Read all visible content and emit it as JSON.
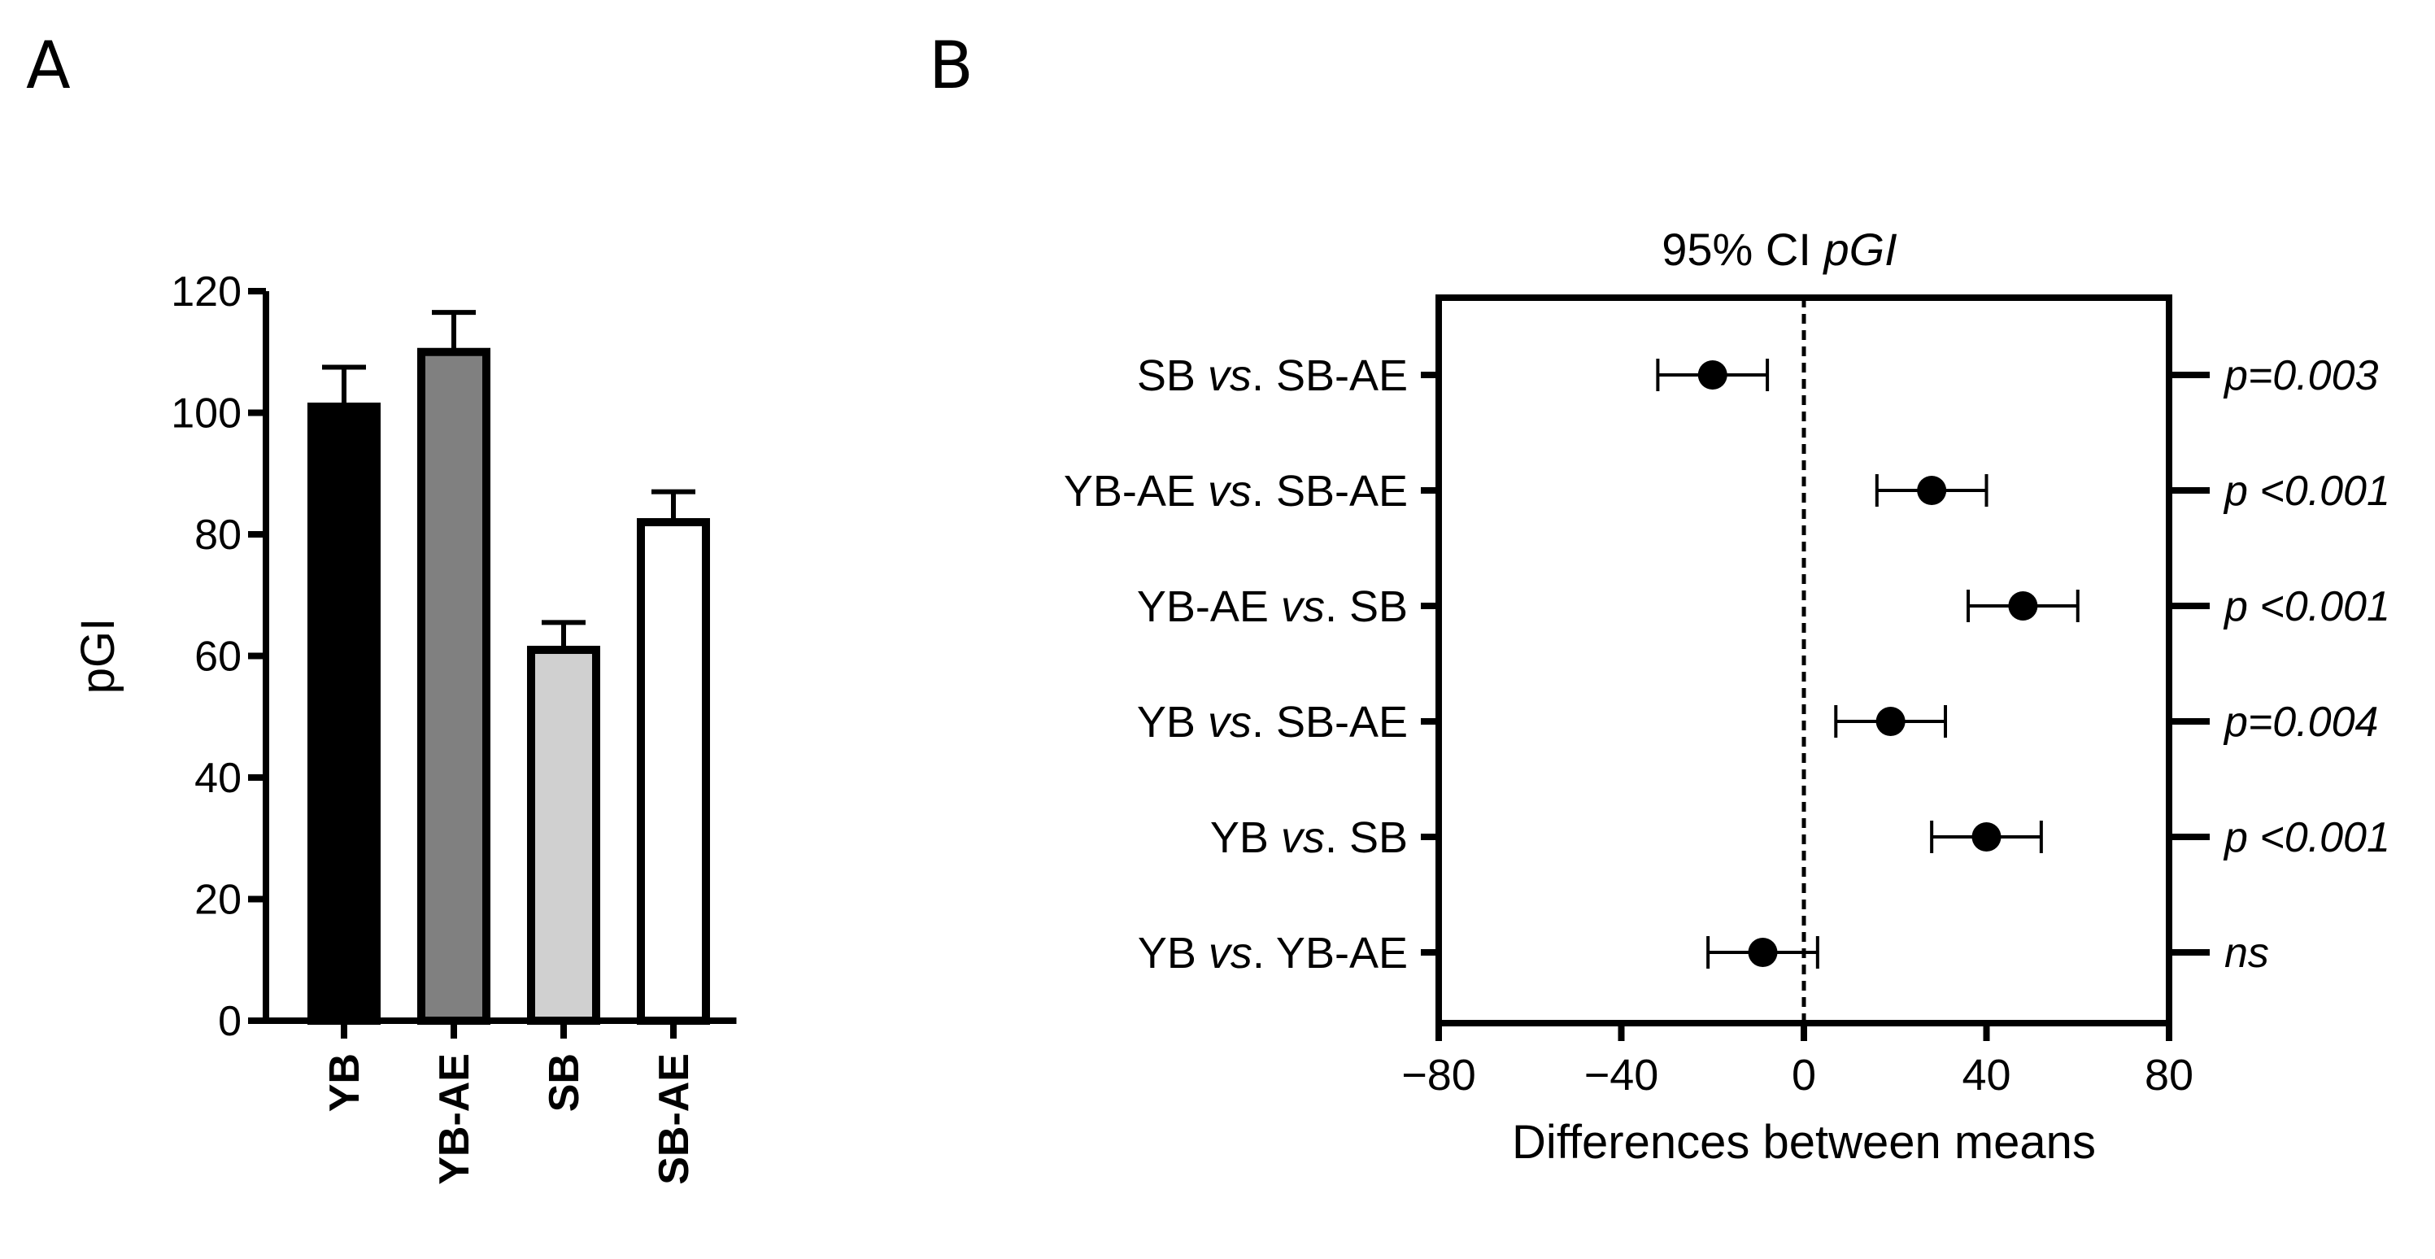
{
  "panels": {
    "a_label": "A",
    "b_label": "B"
  },
  "colors": {
    "ink": "#000000",
    "yb": "#000000",
    "yb_ae": "#808080",
    "sb": "#d0d0d0",
    "sb_ae": "#ffffff"
  },
  "chart_data": [
    {
      "type": "bar",
      "title": "",
      "ylabel": "pGI",
      "xlabel": "",
      "ylim": [
        0,
        120
      ],
      "yticks": [
        0,
        20,
        40,
        60,
        80,
        100,
        120
      ],
      "categories": [
        "YB",
        "YB-AE",
        "SB",
        "SB-AE"
      ],
      "values": [
        101,
        110,
        61,
        82
      ],
      "errors": [
        6.5,
        6.5,
        4.5,
        5
      ],
      "bar_colors": [
        "#000000",
        "#808080",
        "#d0d0d0",
        "#ffffff"
      ]
    },
    {
      "type": "scatter",
      "title_plain": "95% CI ",
      "title_italic": "pGI",
      "xlabel": "Differences between means",
      "xlim": [
        -80,
        80
      ],
      "xticks": [
        -80,
        -40,
        0,
        40,
        80
      ],
      "xtick_labels": [
        "−80",
        "−40",
        "0",
        "40",
        "80"
      ],
      "reference_line": 0,
      "comparisons": [
        {
          "left": "SB ",
          "mid": "vs",
          "right": ". SB-AE",
          "mean": -20,
          "lo": -32,
          "hi": -8,
          "p": "p=0.003"
        },
        {
          "left": "YB-AE ",
          "mid": "vs",
          "right": ". SB-AE",
          "mean": 28,
          "lo": 16,
          "hi": 40,
          "p": "p <0.001"
        },
        {
          "left": "YB-AE ",
          "mid": "vs",
          "right": ". SB",
          "mean": 48,
          "lo": 36,
          "hi": 60,
          "p": "p <0.001"
        },
        {
          "left": "YB ",
          "mid": "vs",
          "right": ". SB-AE",
          "mean": 19,
          "lo": 7,
          "hi": 31,
          "p": "p=0.004"
        },
        {
          "left": "YB ",
          "mid": "vs",
          "right": ". SB",
          "mean": 40,
          "lo": 28,
          "hi": 52,
          "p": "p <0.001"
        },
        {
          "left": "YB ",
          "mid": "vs",
          "right": ". YB-AE",
          "mean": -9,
          "lo": -21,
          "hi": 3,
          "p": "ns"
        }
      ]
    }
  ]
}
